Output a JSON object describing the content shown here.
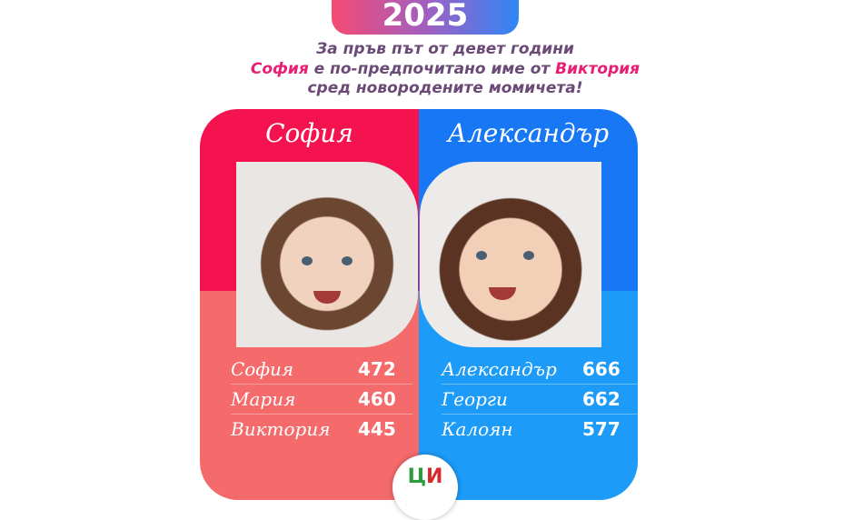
{
  "year": "2025",
  "headline": {
    "line1": "За пръв път от девет години",
    "line2_name1": "София",
    "line2_mid": " е по-предпочитано име от ",
    "line2_name2": "Виктория",
    "line3": "сред новородените момичета!"
  },
  "girls": {
    "title": "София",
    "color": "#f4124f",
    "rows": [
      {
        "name": "София",
        "count": "472"
      },
      {
        "name": "Мария",
        "count": "460"
      },
      {
        "name": "Виктория",
        "count": "445"
      }
    ]
  },
  "boys": {
    "title": "Александър",
    "color": "#1777f5",
    "rows": [
      {
        "name": "Александър",
        "count": "666"
      },
      {
        "name": "Георги",
        "count": "662"
      },
      {
        "name": "Калоян",
        "count": "577"
      }
    ]
  },
  "logo": {
    "text_green": "Ц",
    "text_red": "И",
    "icon": "nsi-logo"
  }
}
